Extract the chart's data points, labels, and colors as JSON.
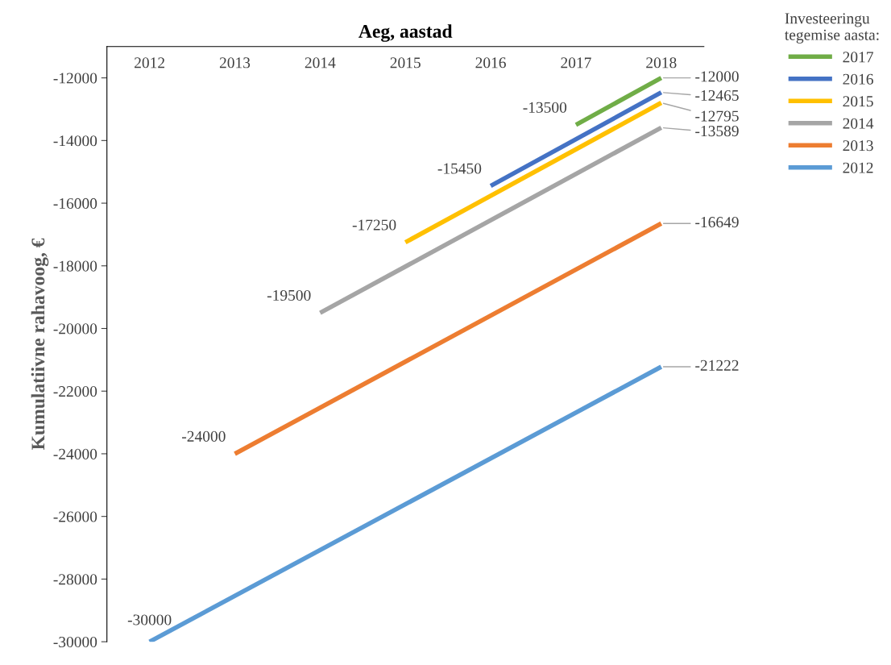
{
  "chart_data": {
    "type": "line",
    "title": "Aeg, aastad",
    "ylabel": "Kumulatiivne rahavoog, €",
    "legend_title": "Investeeringu tegemise aasta:",
    "categories": [
      "2012",
      "2013",
      "2014",
      "2015",
      "2016",
      "2017",
      "2018"
    ],
    "series": [
      {
        "name": "2017",
        "color": "#70ad47",
        "values": [
          null,
          null,
          null,
          null,
          null,
          -13500,
          -12000
        ]
      },
      {
        "name": "2016",
        "color": "#4472c4",
        "values": [
          null,
          null,
          null,
          null,
          -15450,
          null,
          -12465
        ]
      },
      {
        "name": "2015",
        "color": "#ffc000",
        "values": [
          null,
          null,
          null,
          -17250,
          null,
          null,
          -12795
        ]
      },
      {
        "name": "2014",
        "color": "#a5a5a5",
        "values": [
          null,
          null,
          -19500,
          null,
          null,
          null,
          -13589
        ]
      },
      {
        "name": "2013",
        "color": "#ed7d31",
        "values": [
          null,
          -24000,
          null,
          null,
          null,
          null,
          -16649
        ]
      },
      {
        "name": "2012",
        "color": "#5b9bd5",
        "values": [
          -30000,
          null,
          null,
          null,
          null,
          null,
          -21222
        ]
      }
    ],
    "ylim": [
      -30000,
      -11000
    ],
    "yticks": [
      -30000,
      -28000,
      -26000,
      -24000,
      -22000,
      -20000,
      -18000,
      -16000,
      -14000,
      -12000
    ],
    "data_labels": true,
    "legend": "top right",
    "grid": false,
    "marker": "none",
    "line_style": "solid"
  }
}
